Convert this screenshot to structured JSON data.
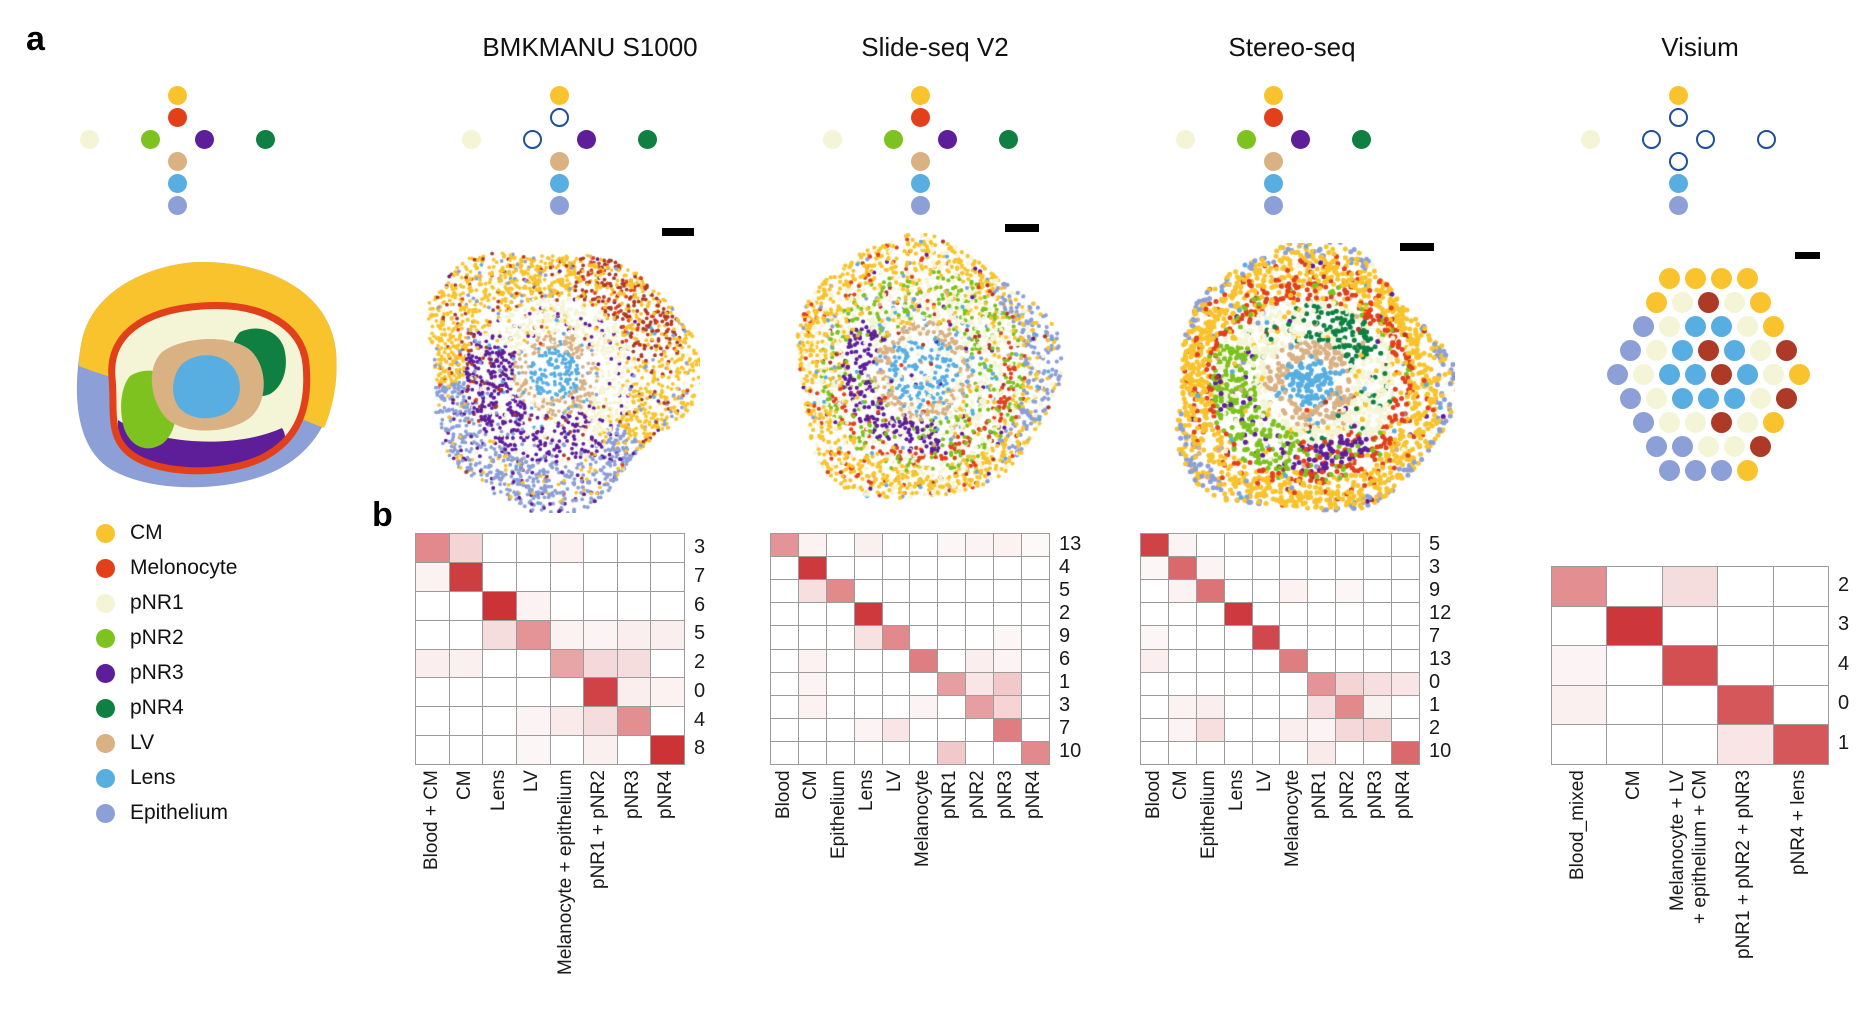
{
  "panel_a": {
    "label": "a"
  },
  "panel_b": {
    "label": "b"
  },
  "colors": {
    "heatmap_high": "#C9282C",
    "grid_line": "#9B9B9B",
    "open_circle": "#1F4E9E",
    "blood": "#AC3A27",
    "scale_bar": "#000000"
  },
  "cell_types": [
    {
      "key": "CM",
      "label": "CM",
      "color": "#F8C32C"
    },
    {
      "key": "Melonocyte",
      "label": "Melonocyte",
      "color": "#E2401B"
    },
    {
      "key": "pNR1",
      "label": "pNR1",
      "color": "#F4F4D6"
    },
    {
      "key": "pNR2",
      "label": "pNR2",
      "color": "#7DC21E"
    },
    {
      "key": "pNR3",
      "label": "pNR3",
      "color": "#5E1E99"
    },
    {
      "key": "pNR4",
      "label": "pNR4",
      "color": "#0F8042"
    },
    {
      "key": "LV",
      "label": "LV",
      "color": "#D9B183"
    },
    {
      "key": "Lens",
      "label": "Lens",
      "color": "#58AEE0"
    },
    {
      "key": "Epithelium",
      "label": "Epithelium",
      "color": "#8C9FD6"
    }
  ],
  "platforms": [
    {
      "title": "BMKMANU S1000",
      "cross_open": [
        "Melonocyte",
        "pNR2"
      ]
    },
    {
      "title": "Slide-seq V2",
      "cross_open": []
    },
    {
      "title": "Stereo-seq",
      "cross_open": []
    },
    {
      "title": "Visium",
      "cross_open": [
        "Melonocyte",
        "LV",
        "pNR2",
        "pNR3",
        "pNR4"
      ]
    }
  ],
  "reference_cross_open": [],
  "chart_data": [
    {
      "type": "heatmap",
      "platform": "BMKMANU S1000",
      "columns": [
        "Blood + CM",
        "CM",
        "Lens",
        "LV",
        "Melanocyte + epithelium",
        "pNR1 + pNR2",
        "pNR3",
        "pNR4"
      ],
      "rows": [
        "3",
        "7",
        "6",
        "5",
        "2",
        "0",
        "4",
        "8"
      ],
      "values": [
        [
          0.55,
          0.2,
          0,
          0,
          0.06,
          0,
          0,
          0
        ],
        [
          0.06,
          0.9,
          0,
          0,
          0,
          0,
          0,
          0
        ],
        [
          0,
          0,
          0.95,
          0.06,
          0,
          0,
          0,
          0
        ],
        [
          0,
          0,
          0.16,
          0.5,
          0.06,
          0.05,
          0.08,
          0.08
        ],
        [
          0.08,
          0.07,
          0,
          0,
          0.42,
          0.18,
          0.16,
          0
        ],
        [
          0,
          0,
          0,
          0,
          0,
          0.88,
          0.08,
          0.06
        ],
        [
          0,
          0,
          0,
          0.05,
          0.1,
          0.16,
          0.52,
          0
        ],
        [
          0,
          0,
          0,
          0.04,
          0,
          0.07,
          0,
          0.95
        ]
      ]
    },
    {
      "type": "heatmap",
      "platform": "Slide-seq V2",
      "columns": [
        "Blood",
        "CM",
        "Epithelium",
        "Lens",
        "LV",
        "Melanocyte",
        "pNR1",
        "pNR2",
        "pNR3",
        "pNR4"
      ],
      "rows": [
        "13",
        "4",
        "5",
        "2",
        "9",
        "6",
        "1",
        "3",
        "7",
        "10"
      ],
      "values": [
        [
          0.5,
          0.06,
          0,
          0.07,
          0,
          0,
          0.04,
          0.05,
          0.06,
          0.03
        ],
        [
          0,
          0.92,
          0,
          0,
          0,
          0,
          0,
          0,
          0,
          0
        ],
        [
          0,
          0.15,
          0.55,
          0,
          0,
          0,
          0,
          0,
          0,
          0
        ],
        [
          0,
          0,
          0,
          0.92,
          0,
          0,
          0,
          0,
          0,
          0
        ],
        [
          0,
          0,
          0,
          0.14,
          0.55,
          0,
          0,
          0,
          0.04,
          0
        ],
        [
          0,
          0.06,
          0,
          0,
          0,
          0.6,
          0,
          0.08,
          0.05,
          0
        ],
        [
          0,
          0.05,
          0,
          0,
          0,
          0,
          0.45,
          0.12,
          0.25,
          0
        ],
        [
          0,
          0.06,
          0,
          0,
          0,
          0.05,
          0,
          0.45,
          0.2,
          0
        ],
        [
          0,
          0,
          0,
          0.05,
          0.12,
          0,
          0,
          0,
          0.6,
          0
        ],
        [
          0,
          0,
          0,
          0,
          0,
          0,
          0.25,
          0,
          0,
          0.55
        ]
      ]
    },
    {
      "type": "heatmap",
      "platform": "Stereo-seq",
      "columns": [
        "Blood",
        "CM",
        "Epithelium",
        "Lens",
        "LV",
        "Melanocyte",
        "pNR1",
        "pNR2",
        "pNR3",
        "pNR4"
      ],
      "rows": [
        "5",
        "3",
        "9",
        "12",
        "7",
        "13",
        "0",
        "1",
        "2",
        "10"
      ],
      "values": [
        [
          0.88,
          0.05,
          0,
          0,
          0,
          0,
          0,
          0,
          0,
          0
        ],
        [
          0.04,
          0.7,
          0.05,
          0,
          0,
          0,
          0,
          0,
          0,
          0
        ],
        [
          0,
          0.06,
          0.65,
          0,
          0,
          0.06,
          0,
          0.04,
          0,
          0
        ],
        [
          0,
          0,
          0,
          0.92,
          0,
          0,
          0,
          0,
          0,
          0
        ],
        [
          0.04,
          0,
          0,
          0,
          0.85,
          0,
          0,
          0,
          0,
          0
        ],
        [
          0.08,
          0,
          0,
          0,
          0,
          0.6,
          0,
          0,
          0,
          0
        ],
        [
          0,
          0,
          0,
          0,
          0,
          0,
          0.5,
          0.2,
          0.15,
          0.12
        ],
        [
          0,
          0.06,
          0.08,
          0,
          0,
          0,
          0.15,
          0.55,
          0.07,
          0
        ],
        [
          0,
          0.05,
          0.15,
          0,
          0,
          0.08,
          0.05,
          0.18,
          0.2,
          0
        ],
        [
          0,
          0,
          0,
          0,
          0,
          0,
          0.1,
          0,
          0,
          0.7
        ]
      ]
    },
    {
      "type": "heatmap",
      "platform": "Visium",
      "columns": [
        "Blood_mixed",
        "CM",
        "Melanocyte + LV\n+ epithelium + CM",
        "pNR1 + pNR2 + pNR3",
        "pNR4 + lens"
      ],
      "rows": [
        "2",
        "3",
        "4",
        "0",
        "1"
      ],
      "values": [
        [
          0.52,
          0,
          0.16,
          0,
          0
        ],
        [
          0,
          0.93,
          0,
          0,
          0
        ],
        [
          0.05,
          0,
          0.82,
          0,
          0
        ],
        [
          0.07,
          0,
          0,
          0.78,
          0
        ],
        [
          0,
          0,
          0,
          0.12,
          0.78
        ]
      ]
    }
  ],
  "visium_spots": {
    "legend_map": {
      "Y": "CM",
      "C": "pNR1",
      "B": "Lens",
      "R": "blood",
      "P": "Epithelium"
    },
    "rows": [
      [
        "Y",
        "Y",
        "Y",
        "Y"
      ],
      [
        "Y",
        "C",
        "R",
        "C",
        "Y"
      ],
      [
        "P",
        "C",
        "B",
        "B",
        "C",
        "Y"
      ],
      [
        "P",
        "C",
        "B",
        "R",
        "B",
        "C",
        "R"
      ],
      [
        "P",
        "C",
        "B",
        "B",
        "R",
        "B",
        "C",
        "Y"
      ],
      [
        "P",
        "C",
        "B",
        "B",
        "B",
        "C",
        "R"
      ],
      [
        "P",
        "C",
        "C",
        "R",
        "C",
        "Y"
      ],
      [
        "P",
        "P",
        "C",
        "C",
        "R"
      ],
      [
        "P",
        "P",
        "P",
        "Y"
      ]
    ]
  },
  "scatter_maps": [
    {
      "platform": "BMKMANU S1000",
      "noise": 0.06,
      "dot": 1.9,
      "n": 3400,
      "regions": [
        {
          "r": [
            0,
            0.19
          ],
          "w": {
            "Lens": 1
          }
        },
        {
          "r": [
            0.19,
            0.32
          ],
          "w": {
            "LV": 0.85,
            "Lens": 0.08,
            "pNR1": 0.07
          }
        },
        {
          "r": [
            0.32,
            0.68
          ],
          "a": [
            150,
            305
          ],
          "w": {
            "pNR3": 0.72,
            "pNR1": 0.14,
            "blood": 0.07,
            "Epithelium": 0.07
          }
        },
        {
          "r": [
            0.32,
            0.6
          ],
          "w": {
            "pNR1": 0.8,
            "CM": 0.1,
            "pNR3": 0.1
          }
        },
        {
          "r": [
            0.52,
            0.98
          ],
          "a": [
            10,
            78
          ],
          "w": {
            "blood": 0.5,
            "CM": 0.4,
            "Melonocyte": 0.1
          }
        },
        {
          "r": [
            0.6,
            1.1
          ],
          "a": [
            185,
            320
          ],
          "w": {
            "Epithelium": 0.78,
            "pNR3": 0.12,
            "CM": 0.1
          }
        },
        {
          "r": [
            0.6,
            1.1
          ],
          "w": {
            "CM": 0.85,
            "blood": 0.08,
            "Epithelium": 0.07
          }
        }
      ]
    },
    {
      "platform": "Slide-seq V2",
      "noise": 0.1,
      "dot": 2.1,
      "n": 3200,
      "regions": [
        {
          "r": [
            0,
            0.26
          ],
          "w": {
            "Lens": 0.55,
            "none": 0.28,
            "pNR1": 0.17
          }
        },
        {
          "r": [
            0.26,
            0.38
          ],
          "w": {
            "LV": 0.72,
            "pNR1": 0.18,
            "Lens": 0.1
          }
        },
        {
          "r": [
            0.3,
            0.62
          ],
          "a": [
            140,
            285
          ],
          "w": {
            "pNR3": 0.7,
            "pNR1": 0.15,
            "pNR2": 0.15
          }
        },
        {
          "r": [
            0.38,
            0.6
          ],
          "w": {
            "pNR1": 0.55,
            "pNR2": 0.25,
            "Lens": 0.08,
            "CM": 0.12
          }
        },
        {
          "r": [
            0.6,
            0.72
          ],
          "a": [
            190,
            380
          ],
          "w": {
            "Melonocyte": 0.45,
            "pNR2": 0.3,
            "pNR1": 0.25
          }
        },
        {
          "r": [
            0.6,
            0.78
          ],
          "w": {
            "pNR2": 0.38,
            "pNR1": 0.36,
            "CM": 0.26
          }
        },
        {
          "r": [
            0.72,
            1.1
          ],
          "a": [
            318,
            408
          ],
          "w": {
            "Epithelium": 0.55,
            "CM": 0.33,
            "pNR1": 0.12
          }
        },
        {
          "r": [
            0.78,
            1.1
          ],
          "w": {
            "CM": 0.72,
            "pNR1": 0.2,
            "Melonocyte": 0.08
          }
        }
      ]
    },
    {
      "platform": "Stereo-seq",
      "noise": 0.07,
      "dot": 2.5,
      "n": 3000,
      "regions": [
        {
          "r": [
            0,
            0.18
          ],
          "w": {
            "Lens": 1
          }
        },
        {
          "r": [
            0.18,
            0.32
          ],
          "w": {
            "LV": 0.9,
            "Lens": 0.1
          }
        },
        {
          "r": [
            0.3,
            0.58
          ],
          "a": [
            25,
            95
          ],
          "w": {
            "pNR4": 0.8,
            "pNR1": 0.2
          }
        },
        {
          "r": [
            0.38,
            0.7
          ],
          "a": [
            150,
            260
          ],
          "w": {
            "pNR2": 0.75,
            "pNR1": 0.13,
            "pNR3": 0.12
          }
        },
        {
          "r": [
            0.45,
            0.66
          ],
          "a": [
            260,
            318
          ],
          "w": {
            "pNR3": 0.55,
            "pNR2": 0.2,
            "Melonocyte": 0.25
          }
        },
        {
          "r": [
            0.32,
            0.62
          ],
          "w": {
            "pNR1": 0.8,
            "pNR4": 0.1,
            "CM": 0.1
          }
        },
        {
          "r": [
            0.62,
            0.75
          ],
          "w": {
            "Melonocyte": 0.58,
            "CM": 0.26,
            "pNR2": 0.16
          }
        },
        {
          "r": [
            0.93,
            1.1
          ],
          "w": {
            "Epithelium": 0.45,
            "CM": 0.55
          }
        },
        {
          "r": [
            0.75,
            1.1
          ],
          "w": {
            "CM": 0.9,
            "Melonocyte": 0.1
          }
        }
      ]
    }
  ]
}
